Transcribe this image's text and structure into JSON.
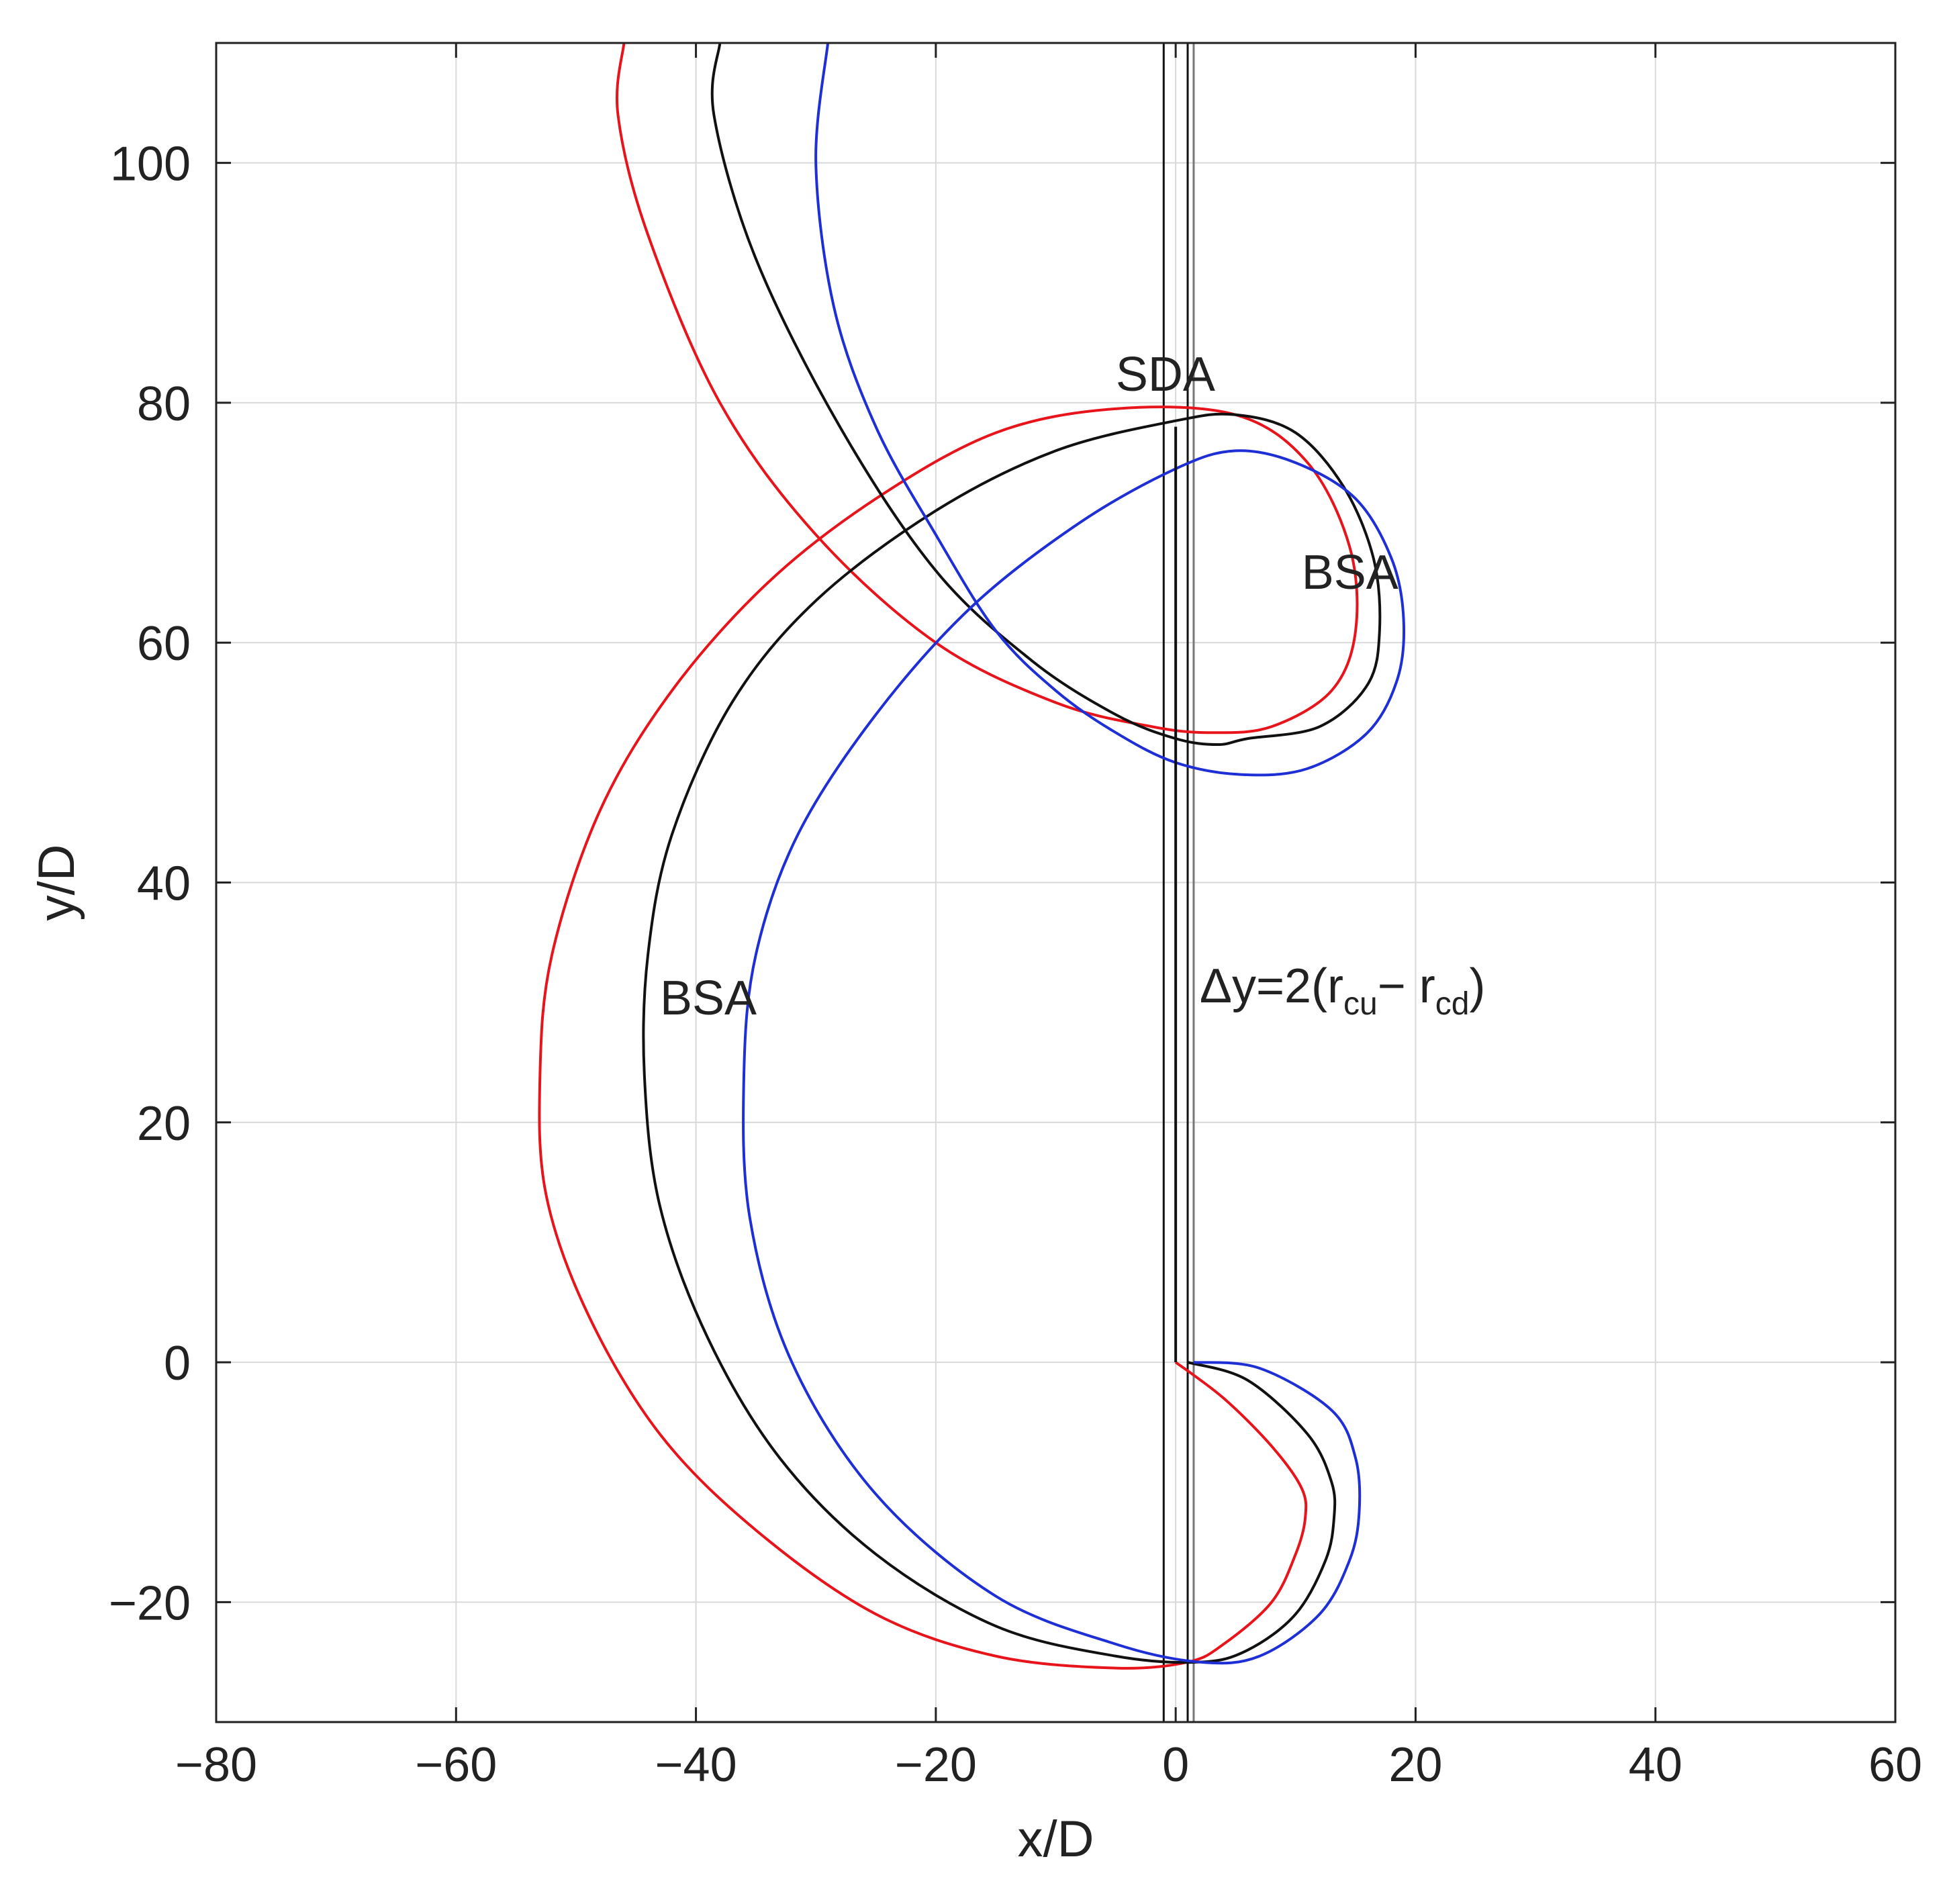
{
  "chart_data": {
    "type": "line",
    "title": "",
    "xlabel": "x/D",
    "ylabel": "y/D",
    "xlim": [
      -80,
      60
    ],
    "ylim": [
      -30,
      110
    ],
    "x_ticks": [
      -80,
      -60,
      -40,
      -20,
      0,
      20,
      40,
      60
    ],
    "y_ticks": [
      -20,
      0,
      20,
      40,
      60,
      80,
      100
    ],
    "x_tick_labels": [
      "−80",
      "−60",
      "−40",
      "−20",
      "0",
      "20",
      "40",
      "60"
    ],
    "y_tick_labels": [
      "−20",
      "0",
      "20",
      "40",
      "60",
      "80",
      "100"
    ],
    "grid": true,
    "colors": {
      "red": "#e8141b",
      "black": "#111111",
      "blue": "#1f2fd6",
      "grid": "#d9d9d9"
    },
    "series": [
      {
        "color": "red",
        "x": [
          0.0,
          4.0,
          8.0,
          10.5,
          10.8,
          10.0,
          8.0,
          4.0,
          1.0,
          -5.0,
          -15.0,
          -25.0,
          -35.0,
          -43.0,
          -49.0,
          -52.5,
          -53.0,
          -52.0,
          -48.0,
          -42.0,
          -34.0,
          -25.0,
          -15.0,
          -5.0,
          5.0,
          11.0,
          14.5,
          15.0,
          13.0,
          8.0,
          3.0,
          -2.0,
          -10.0,
          -20.0,
          -30.0,
          -38.0,
          -44.0,
          -46.5,
          -46.0
        ],
        "y": [
          0.0,
          -3.0,
          -7.0,
          -10.5,
          -13.0,
          -16.0,
          -20.0,
          -23.5,
          -25.0,
          -25.5,
          -24.5,
          -21.0,
          -14.0,
          -6.0,
          4.0,
          14.0,
          24.0,
          34.0,
          46.0,
          56.0,
          65.0,
          72.0,
          77.5,
          79.5,
          79.0,
          75.0,
          68.0,
          61.0,
          56.0,
          53.0,
          52.5,
          53.0,
          55.0,
          60.0,
          69.0,
          80.0,
          94.0,
          104.0,
          110.0
        ]
      },
      {
        "color": "black",
        "x": [
          1.0,
          6.0,
          11.0,
          13.0,
          13.2,
          12.5,
          10.0,
          6.0,
          2.0,
          -5.0,
          -15.0,
          -25.0,
          -33.0,
          -39.0,
          -43.0,
          -44.3,
          -44.0,
          -42.0,
          -37.0,
          -30.0,
          -20.0,
          -10.0,
          0.0,
          5.0,
          10.0,
          14.0,
          16.5,
          17.0,
          16.0,
          12.0,
          6.0,
          3.5,
          0.0,
          -5.0,
          -12.0,
          -20.0,
          -28.0,
          -35.0,
          -38.5,
          -38.0
        ],
        "y": [
          0.0,
          -1.5,
          -6.0,
          -10.0,
          -13.0,
          -16.5,
          -21.0,
          -24.0,
          -25.0,
          -24.5,
          -22.0,
          -16.0,
          -8.0,
          2.0,
          13.0,
          24.0,
          34.0,
          44.0,
          55.0,
          63.5,
          71.0,
          76.0,
          78.5,
          79.0,
          77.5,
          73.0,
          67.0,
          61.0,
          56.5,
          53.0,
          52.0,
          51.5,
          52.0,
          54.0,
          58.5,
          66.0,
          78.0,
          92.0,
          104.0,
          110.0
        ]
      },
      {
        "color": "blue",
        "x": [
          1.5,
          7.0,
          13.0,
          15.0,
          15.3,
          14.5,
          12.0,
          7.0,
          2.0,
          -5.0,
          -15.0,
          -25.0,
          -32.0,
          -35.5,
          -36.0,
          -35.0,
          -31.5,
          -25.0,
          -17.0,
          -8.0,
          0.0,
          5.0,
          10.0,
          15.0,
          18.0,
          19.0,
          18.5,
          16.0,
          11.0,
          5.5,
          0.0,
          -5.0,
          -10.0,
          -15.0,
          -20.0,
          -25.0,
          -28.5,
          -30.0,
          -29.0
        ],
        "y": [
          0.0,
          -0.5,
          -4.0,
          -8.0,
          -12.5,
          -16.5,
          -21.0,
          -24.5,
          -25.0,
          -23.5,
          -19.5,
          -11.0,
          0.0,
          12.0,
          24.0,
          34.0,
          44.0,
          54.0,
          63.0,
          70.0,
          74.5,
          76.0,
          75.0,
          72.0,
          67.0,
          62.0,
          57.0,
          52.5,
          49.5,
          49.0,
          50.0,
          52.5,
          56.0,
          61.0,
          69.0,
          78.0,
          88.0,
          100.0,
          110.0
        ]
      },
      {
        "color": "black",
        "x": [
          0.0,
          0.0
        ],
        "y": [
          0.0,
          78.0
        ]
      }
    ],
    "vertical_lines": [
      {
        "x": -1.0,
        "color": "black"
      },
      {
        "x": 1.0,
        "color": "black"
      },
      {
        "x": 1.5,
        "color": "gray"
      }
    ],
    "annotations": [
      {
        "text": "SDA",
        "x": -5.0,
        "y": 81.0
      },
      {
        "text": "BSA",
        "x": 10.5,
        "y": 64.5
      },
      {
        "text": "BSA",
        "x": -43.0,
        "y": 29.0
      },
      {
        "text": "Δy=2(r",
        "sub1": "cu",
        "mid": "− r",
        "sub2": "cd",
        "tail": ")",
        "x": 2.0,
        "y": 30.0
      }
    ]
  }
}
